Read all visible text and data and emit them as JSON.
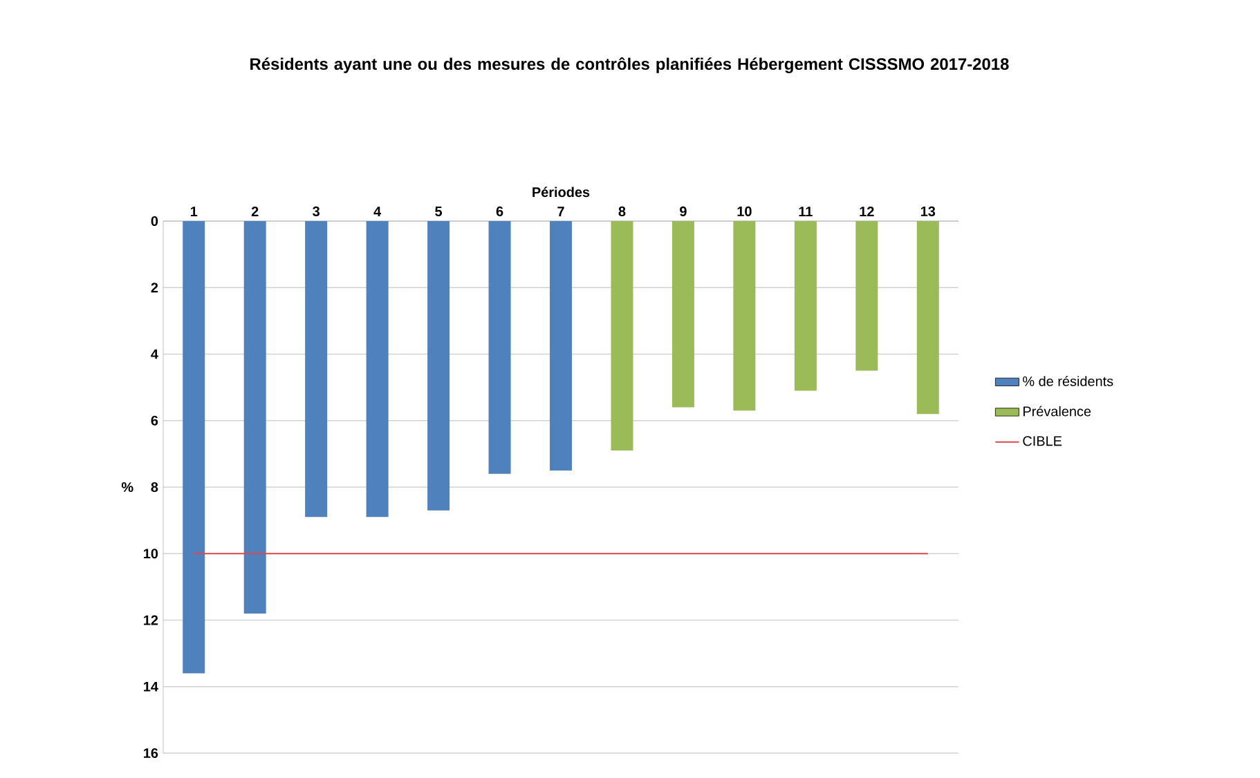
{
  "chart_data": {
    "type": "bar",
    "title": "Résidents ayant une ou des mesures de contrôles planifiées Hébergement CISSSMO 2017-2018",
    "xlabel": "Périodes",
    "ylabel": "%",
    "categories": [
      "1",
      "2",
      "3",
      "4",
      "5",
      "6",
      "7",
      "8",
      "9",
      "10",
      "11",
      "12",
      "13"
    ],
    "series": [
      {
        "name": "% de résidents",
        "color": "#4f81bd",
        "values": [
          13.6,
          11.8,
          8.9,
          8.9,
          8.7,
          7.6,
          7.5,
          null,
          null,
          null,
          null,
          null,
          null
        ]
      },
      {
        "name": "Prévalence",
        "color": "#9bbb59",
        "values": [
          null,
          null,
          null,
          null,
          null,
          null,
          null,
          6.9,
          5.6,
          5.7,
          5.1,
          4.5,
          5.8
        ]
      },
      {
        "name": "CIBLE",
        "type": "line",
        "color": "#e0474c",
        "values": [
          10,
          10,
          10,
          10,
          10,
          10,
          10,
          10,
          10,
          10,
          10,
          10,
          10
        ]
      }
    ],
    "ylim": [
      16,
      0
    ],
    "yticks": [
      0,
      2,
      4,
      6,
      8,
      10,
      12,
      14,
      16
    ],
    "grid": "y",
    "legend": "right"
  }
}
